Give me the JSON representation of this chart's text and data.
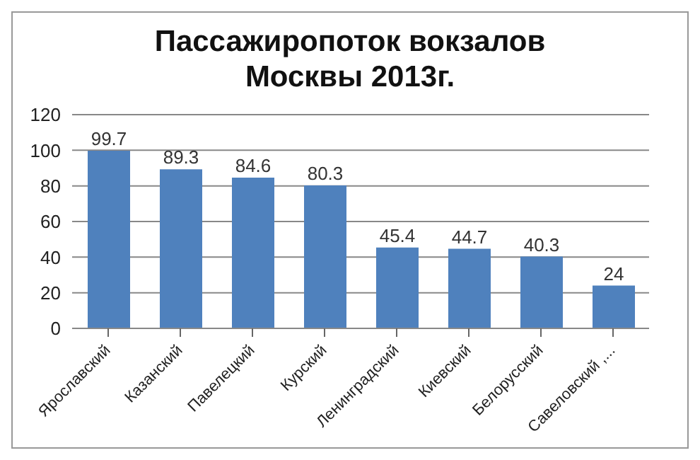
{
  "chart_data": {
    "type": "bar",
    "title": "Пассажиропоток вокзалов Москвы 2013г.",
    "categories": [
      "Ярославский",
      "Казанский",
      "Павелецкий",
      "Курский",
      "Ленинградский",
      "Киевский",
      "Белорусский",
      "Савеловский ,..."
    ],
    "values": [
      99.7,
      89.3,
      84.6,
      80.3,
      45.4,
      44.7,
      40.3,
      24
    ],
    "color": "#4f81bd",
    "ylim": [
      0,
      120
    ],
    "yticks": [
      0,
      20,
      40,
      60,
      80,
      100,
      120
    ],
    "grid": "y",
    "data_labels": true
  }
}
